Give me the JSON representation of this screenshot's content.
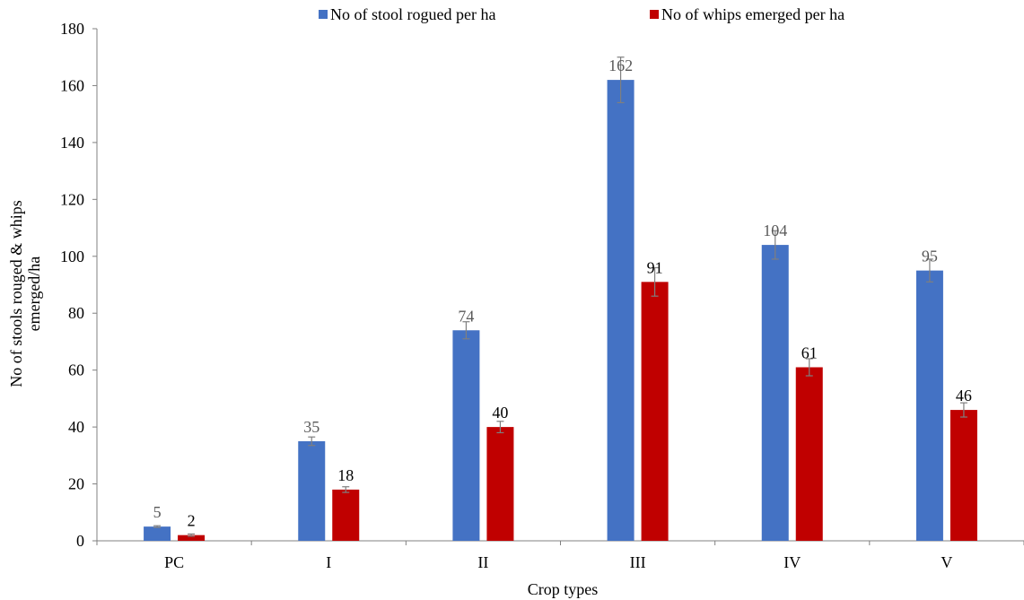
{
  "chart_data": {
    "type": "bar",
    "categories": [
      "PC",
      "I",
      "II",
      "III",
      "IV",
      "V"
    ],
    "series": [
      {
        "name": "No of stool rogued per ha",
        "values": [
          5,
          35,
          74,
          162,
          104,
          95
        ],
        "errors": [
          0.3,
          1.5,
          3,
          8,
          5,
          4
        ],
        "labels": [
          "5",
          "35",
          "74",
          "162",
          "104",
          "95"
        ],
        "color": "#4472C4",
        "label_color": "#595959"
      },
      {
        "name": "No of whips emerged per ha",
        "values": [
          2,
          18,
          40,
          91,
          61,
          46
        ],
        "errors": [
          0.4,
          1,
          2,
          5,
          3,
          2.5
        ],
        "labels": [
          "2",
          "18",
          "40",
          "91",
          "61",
          "46"
        ],
        "color": "#C00000",
        "label_color": "#000000"
      }
    ],
    "xlabel": "Crop types",
    "ylabel_lines": [
      "No of stools rouged  & whips",
      "emerged/ha"
    ],
    "ylim": [
      0,
      180
    ],
    "yticks": [
      0,
      20,
      40,
      60,
      80,
      100,
      120,
      140,
      160,
      180
    ],
    "grid": false,
    "legend_position": "top-center"
  }
}
